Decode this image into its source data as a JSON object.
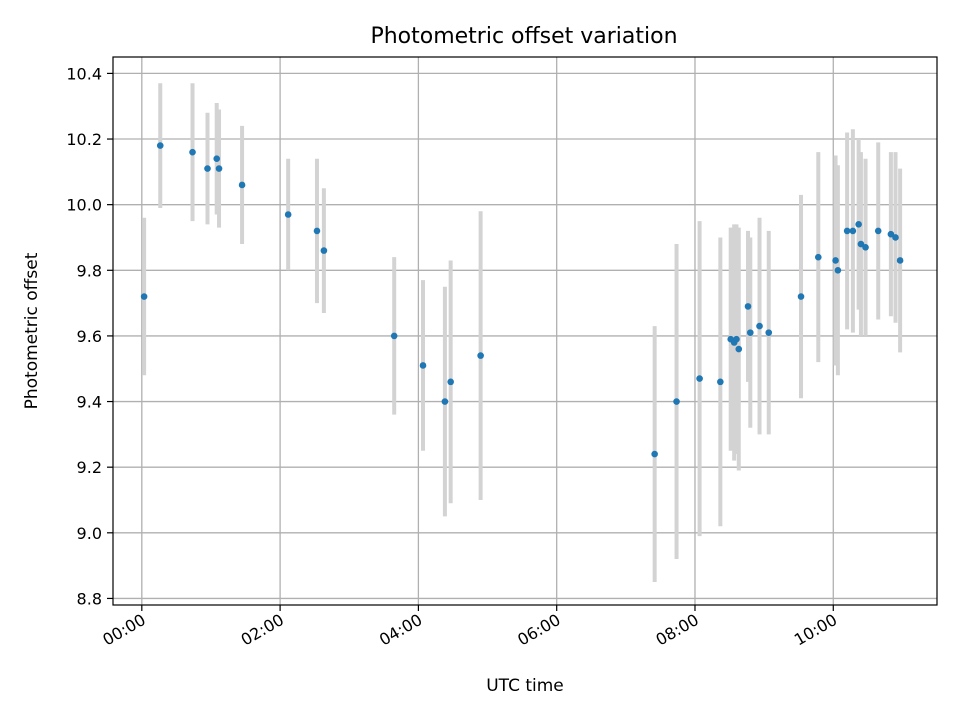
{
  "chart_data": {
    "type": "scatter",
    "title": "Photometric offset variation",
    "xlabel": "UTC time",
    "ylabel": "Photometric offset",
    "xlim": [
      "23:35",
      "11:30"
    ],
    "ylim": [
      8.78,
      10.45
    ],
    "x_ticks": [
      "00:00",
      "02:00",
      "04:00",
      "06:00",
      "08:00",
      "10:00"
    ],
    "y_ticks": [
      "8.8",
      "9.0",
      "9.2",
      "9.4",
      "9.6",
      "9.8",
      "10.0",
      "10.2",
      "10.4"
    ],
    "grid": true,
    "colors": {
      "marker": "#1f77b4",
      "errorbar": "#d3d3d3",
      "grid": "#b0b0b0"
    },
    "series": [
      {
        "points": [
          {
            "t": "00:02",
            "y": 9.72,
            "err": 0.24
          },
          {
            "t": "00:16",
            "y": 10.18,
            "err": 0.19
          },
          {
            "t": "00:44",
            "y": 10.16,
            "err": 0.21
          },
          {
            "t": "00:57",
            "y": 10.11,
            "err": 0.17
          },
          {
            "t": "01:05",
            "y": 10.14,
            "err": 0.17
          },
          {
            "t": "01:07",
            "y": 10.11,
            "err": 0.18
          },
          {
            "t": "01:27",
            "y": 10.06,
            "err": 0.18
          },
          {
            "t": "02:07",
            "y": 9.97,
            "err": 0.17
          },
          {
            "t": "02:32",
            "y": 9.92,
            "err": 0.22
          },
          {
            "t": "02:38",
            "y": 9.86,
            "err": 0.19
          },
          {
            "t": "03:39",
            "y": 9.6,
            "err": 0.24
          },
          {
            "t": "04:04",
            "y": 9.51,
            "err": 0.26
          },
          {
            "t": "04:23",
            "y": 9.4,
            "err": 0.35
          },
          {
            "t": "04:28",
            "y": 9.46,
            "err": 0.37
          },
          {
            "t": "04:54",
            "y": 9.54,
            "err": 0.44
          },
          {
            "t": "07:25",
            "y": 9.24,
            "err": 0.39
          },
          {
            "t": "07:44",
            "y": 9.4,
            "err": 0.48
          },
          {
            "t": "08:04",
            "y": 9.47,
            "err": 0.48
          },
          {
            "t": "08:22",
            "y": 9.46,
            "err": 0.44
          },
          {
            "t": "08:31",
            "y": 9.59,
            "err": 0.34
          },
          {
            "t": "08:34",
            "y": 9.58,
            "err": 0.36
          },
          {
            "t": "08:36",
            "y": 9.59,
            "err": 0.35
          },
          {
            "t": "08:38",
            "y": 9.56,
            "err": 0.37
          },
          {
            "t": "08:46",
            "y": 9.69,
            "err": 0.23
          },
          {
            "t": "08:48",
            "y": 9.61,
            "err": 0.29
          },
          {
            "t": "08:56",
            "y": 9.63,
            "err": 0.33
          },
          {
            "t": "09:04",
            "y": 9.61,
            "err": 0.31
          },
          {
            "t": "09:32",
            "y": 9.72,
            "err": 0.31
          },
          {
            "t": "09:47",
            "y": 9.84,
            "err": 0.32
          },
          {
            "t": "10:02",
            "y": 9.83,
            "err": 0.32
          },
          {
            "t": "10:04",
            "y": 9.8,
            "err": 0.32
          },
          {
            "t": "10:12",
            "y": 9.92,
            "err": 0.3
          },
          {
            "t": "10:17",
            "y": 9.92,
            "err": 0.31
          },
          {
            "t": "10:22",
            "y": 9.94,
            "err": 0.26
          },
          {
            "t": "10:24",
            "y": 9.88,
            "err": 0.28
          },
          {
            "t": "10:28",
            "y": 9.87,
            "err": 0.27
          },
          {
            "t": "10:39",
            "y": 9.92,
            "err": 0.27
          },
          {
            "t": "10:50",
            "y": 9.91,
            "err": 0.25
          },
          {
            "t": "10:54",
            "y": 9.9,
            "err": 0.26
          },
          {
            "t": "10:58",
            "y": 9.83,
            "err": 0.28
          }
        ]
      }
    ]
  }
}
